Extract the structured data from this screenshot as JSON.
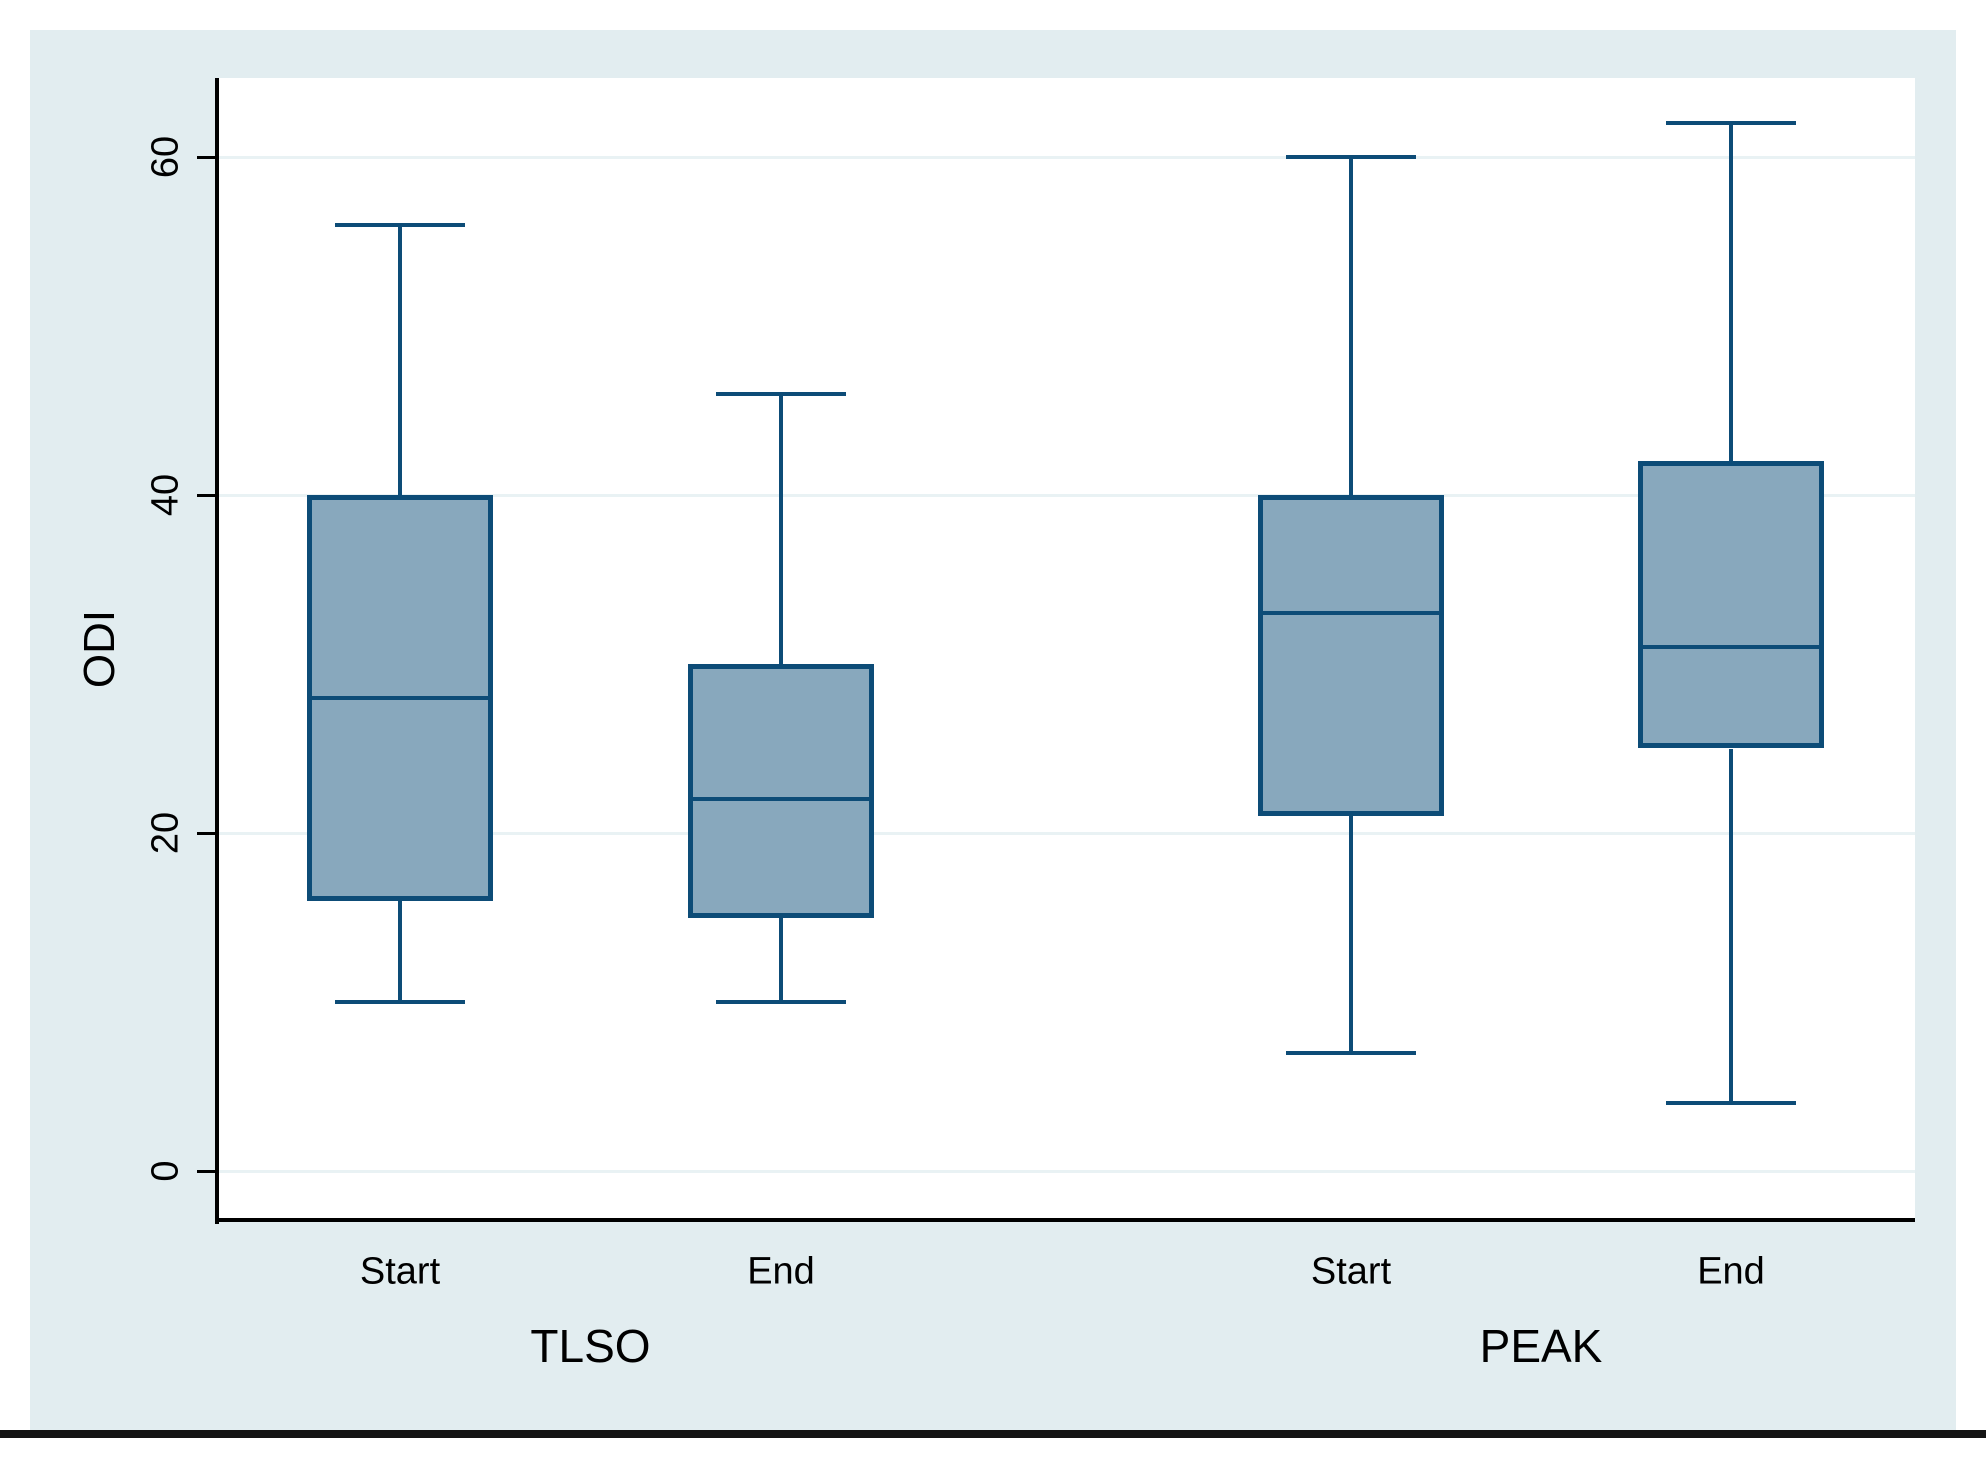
{
  "chart_data": {
    "type": "box",
    "title": "",
    "xlabel": "",
    "ylabel": "ODI",
    "ylim": [
      -3,
      65
    ],
    "yticks": [
      0,
      20,
      40,
      60
    ],
    "grid": true,
    "legend": "none",
    "groups": [
      {
        "label": "TLSO",
        "boxes": [
          {
            "label": "Start",
            "whisker_low": 10,
            "q1": 16,
            "median": 28,
            "q3": 40,
            "whisker_high": 56
          },
          {
            "label": "End",
            "whisker_low": 10,
            "q1": 15,
            "median": 22,
            "q3": 30,
            "whisker_high": 46
          }
        ]
      },
      {
        "label": "PEAK",
        "boxes": [
          {
            "label": "Start",
            "whisker_low": 7,
            "q1": 21,
            "median": 33,
            "q3": 40,
            "whisker_high": 60
          },
          {
            "label": "End",
            "whisker_low": 4,
            "q1": 25,
            "median": 31,
            "q3": 42,
            "whisker_high": 62
          }
        ]
      }
    ],
    "colors": {
      "box_fill": "#88a8bd",
      "box_border": "#0d4c77",
      "whisker": "#0d4c77",
      "figure_background": "#e2edf0",
      "plot_background": "#ffffff",
      "gridline": "#e9f2f4",
      "axis": "#000000"
    }
  }
}
